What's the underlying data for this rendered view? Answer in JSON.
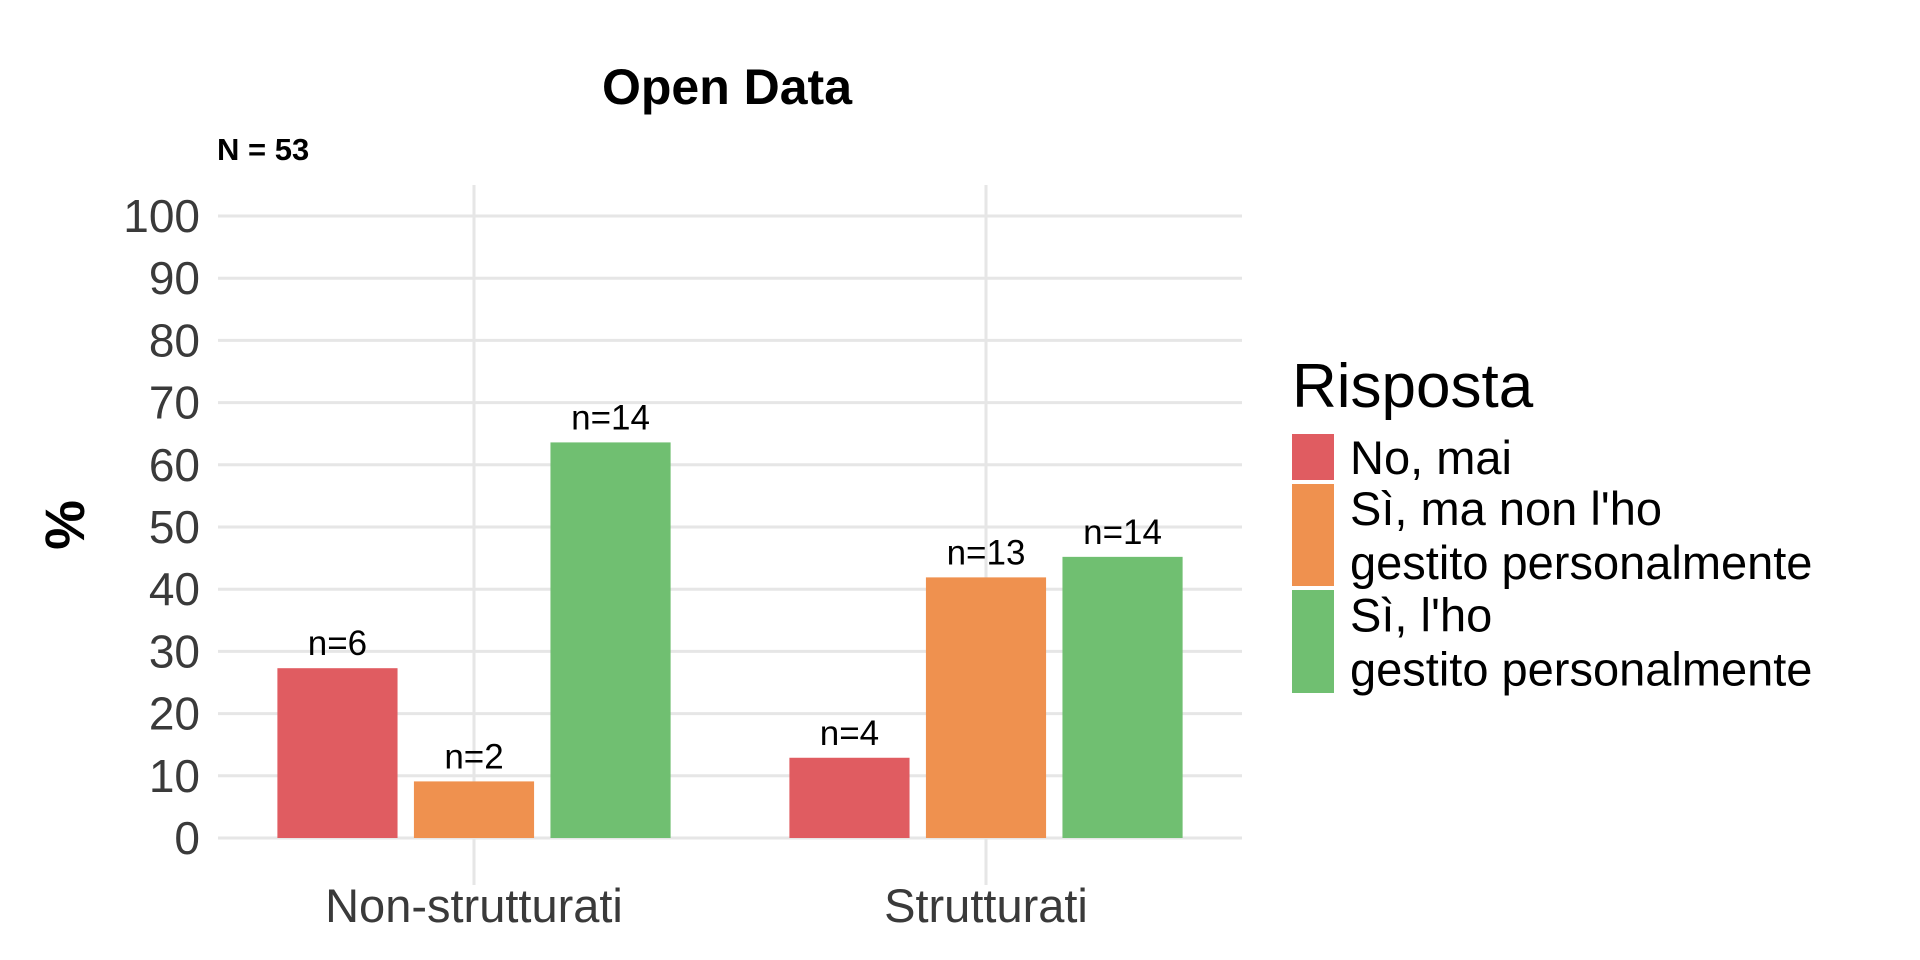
{
  "chart_data": {
    "type": "bar",
    "title": "Open Data",
    "subtitle": "N = 53",
    "xlabel": "",
    "ylabel": "%",
    "ylim": [
      0,
      100
    ],
    "yticks": [
      "0",
      "10",
      "20",
      "30",
      "40",
      "50",
      "60",
      "70",
      "80",
      "90",
      "100"
    ],
    "categories": [
      "Non-strutturati",
      "Strutturati"
    ],
    "grid": true,
    "legend": {
      "title": "Risposta",
      "placement": "right"
    },
    "series": [
      {
        "name": "No, mai",
        "name_lines": [
          "No, mai"
        ],
        "color": "#e05c61",
        "values": [
          27.3,
          12.9
        ],
        "labels": [
          "n=6",
          "n=4"
        ]
      },
      {
        "name": "Sì, ma non l'ho gestito personalmente",
        "name_lines": [
          "Sì, ma non l'ho",
          "gestito personalmente"
        ],
        "color": "#ef914f",
        "values": [
          9.1,
          41.9
        ],
        "labels": [
          "n=2",
          "n=13"
        ]
      },
      {
        "name": "Sì, l'ho gestito personalmente",
        "name_lines": [
          "Sì, l'ho",
          "gestito personalmente"
        ],
        "color": "#70bf71",
        "values": [
          63.6,
          45.2
        ],
        "labels": [
          "n=14",
          "n=14"
        ]
      }
    ]
  }
}
